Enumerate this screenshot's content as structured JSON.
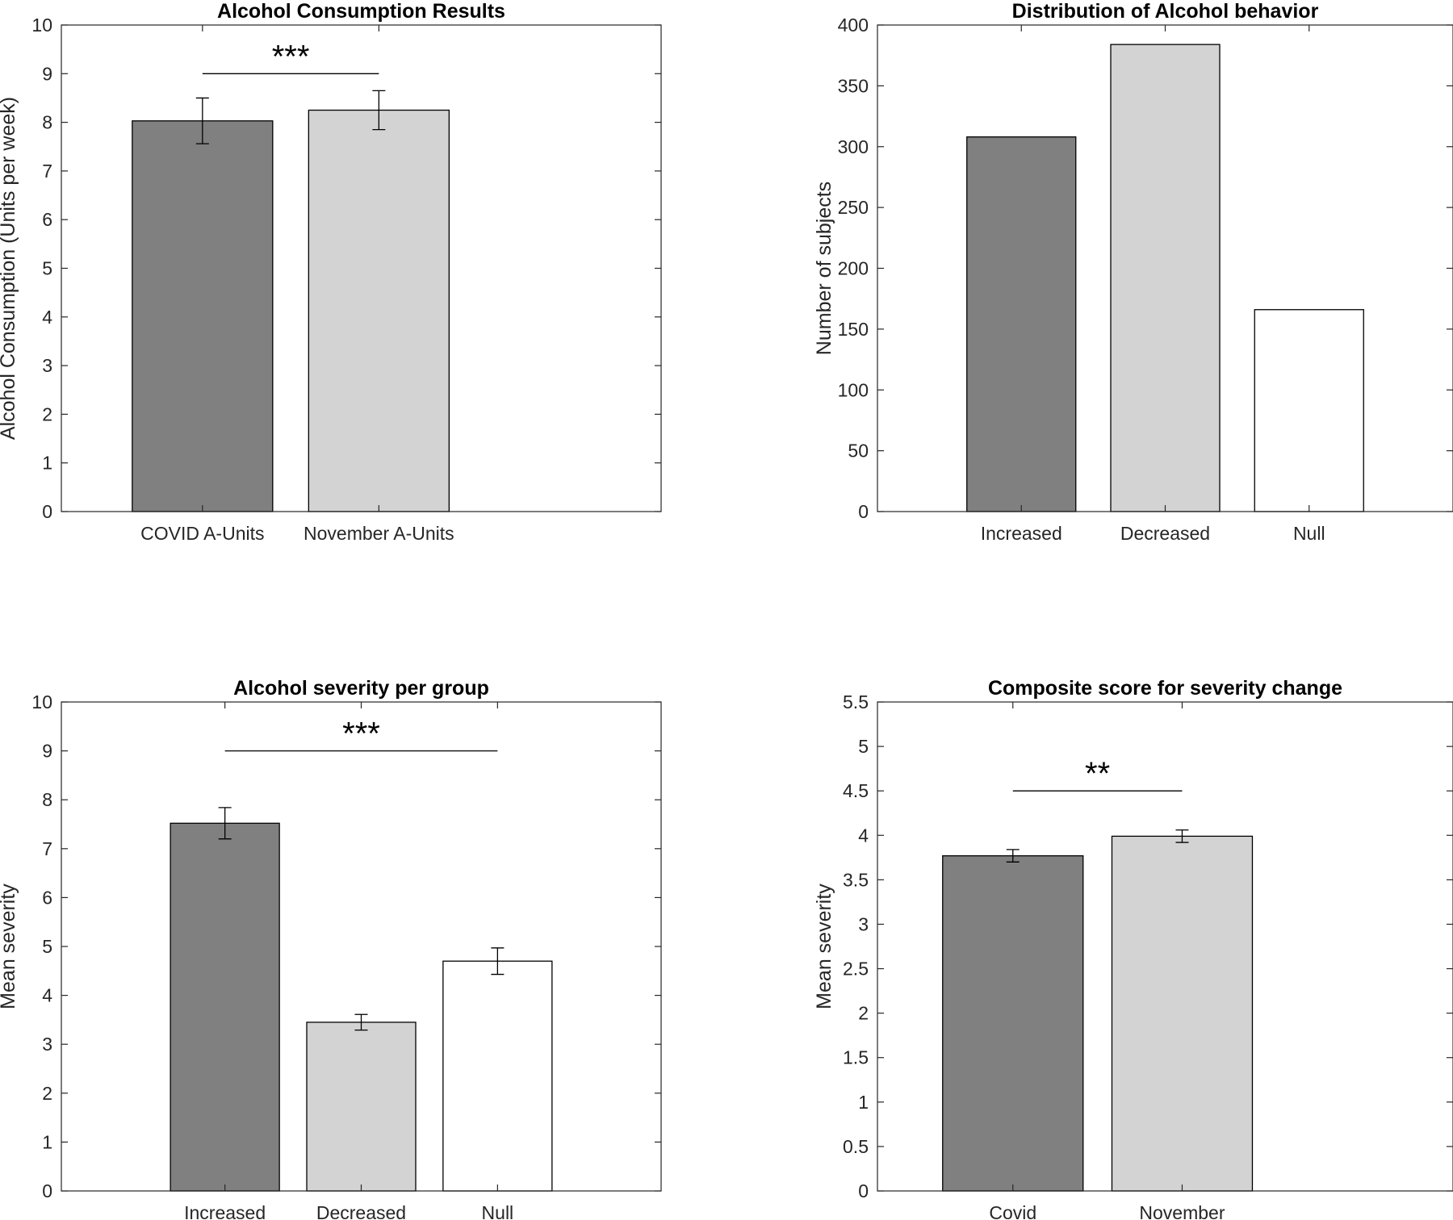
{
  "colors": {
    "dark_gray": "#808080",
    "light_gray": "#d3d3d3",
    "white": "#ffffff",
    "axis": "#262626"
  },
  "chart_data": [
    {
      "type": "bar",
      "title": "Alcohol Consumption Results",
      "xlabel": "",
      "ylabel": "Alcohol Consumption (Units per week)",
      "categories": [
        "COVID A-Units",
        "November A-Units"
      ],
      "values": [
        8.03,
        8.25
      ],
      "error": [
        0.47,
        0.4
      ],
      "bar_colors": [
        "#808080",
        "#d3d3d3"
      ],
      "xlim": [
        0.2,
        3.6
      ],
      "ylim": [
        0,
        10
      ],
      "yticks": [
        0,
        1,
        2,
        3,
        4,
        5,
        6,
        7,
        8,
        9,
        10
      ],
      "significance": {
        "label": "***",
        "from": 1,
        "to": 2,
        "y": 9.0
      },
      "grid": false
    },
    {
      "type": "bar",
      "title": "Distribution of Alcohol behavior",
      "xlabel": "",
      "ylabel": "Number of subjects",
      "categories": [
        "Increased",
        "Decreased",
        "Null"
      ],
      "values": [
        308,
        384,
        166
      ],
      "bar_colors": [
        "#808080",
        "#d3d3d3",
        "#ffffff"
      ],
      "xlim": [
        0,
        4
      ],
      "ylim": [
        0,
        400
      ],
      "yticks": [
        0,
        50,
        100,
        150,
        200,
        250,
        300,
        350,
        400
      ],
      "grid": false
    },
    {
      "type": "bar",
      "title": "Alcohol severity per group",
      "xlabel": "",
      "ylabel": "Mean severity",
      "categories": [
        "Increased",
        "Decreased",
        "Null"
      ],
      "values": [
        7.52,
        3.45,
        4.7
      ],
      "error": [
        0.32,
        0.16,
        0.27
      ],
      "bar_colors": [
        "#808080",
        "#d3d3d3",
        "#ffffff"
      ],
      "xlim": [
        -0.2,
        4.2
      ],
      "ylim": [
        0,
        10
      ],
      "yticks": [
        0,
        1,
        2,
        3,
        4,
        5,
        6,
        7,
        8,
        9,
        10
      ],
      "significance": {
        "label": "***",
        "from": 1,
        "to": 3,
        "y": 9.0
      },
      "grid": false
    },
    {
      "type": "bar",
      "title": "Composite score for severity change",
      "xlabel": "",
      "ylabel": "Mean severity",
      "categories": [
        "Covid",
        "November"
      ],
      "values": [
        3.77,
        3.99
      ],
      "error": [
        0.07,
        0.07
      ],
      "bar_colors": [
        "#808080",
        "#d3d3d3"
      ],
      "xlim": [
        0.2,
        3.6
      ],
      "ylim": [
        0,
        5.5
      ],
      "yticks": [
        0,
        0.5,
        1,
        1.5,
        2,
        2.5,
        3,
        3.5,
        4,
        4.5,
        5,
        5.5
      ],
      "significance": {
        "label": "**",
        "from": 1,
        "to": 2,
        "y": 4.5
      },
      "grid": false
    }
  ]
}
